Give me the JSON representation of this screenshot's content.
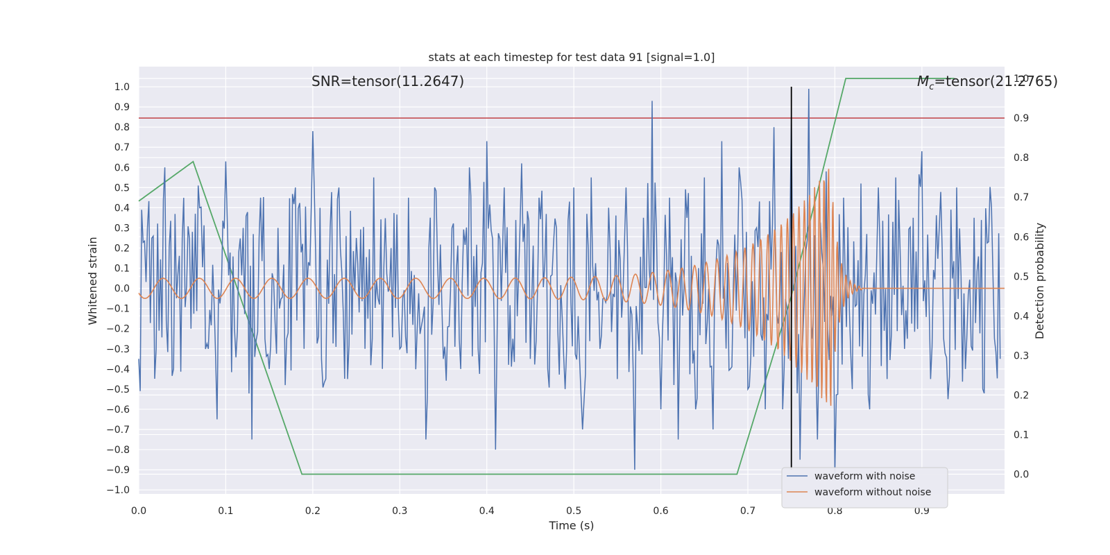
{
  "chart_data": {
    "type": "line",
    "title": "stats at each timestep for test data 91 [signal=1.0]",
    "xlabel": "Time (s)",
    "ylabel": "Whitened strain",
    "y2label": "Detection probability",
    "xlim": [
      0.0,
      0.995
    ],
    "ylim": [
      -1.02,
      1.1
    ],
    "y2lim": [
      -0.05,
      1.03
    ],
    "x_ticks": [
      "0.0",
      "0.1",
      "0.2",
      "0.3",
      "0.4",
      "0.5",
      "0.6",
      "0.7",
      "0.8",
      "0.9"
    ],
    "y_ticks": [
      "1.0",
      "0.9",
      "0.8",
      "0.7",
      "0.6",
      "0.5",
      "0.4",
      "0.3",
      "0.2",
      "0.1",
      "0.0",
      "−0.1",
      "−0.2",
      "−0.3",
      "−0.4",
      "−0.5",
      "−0.6",
      "−0.7",
      "−0.8",
      "−0.9",
      "−1.0"
    ],
    "y2_ticks": [
      "1.0",
      "0.9",
      "0.8",
      "0.7",
      "0.6",
      "0.5",
      "0.4",
      "0.3",
      "0.2",
      "0.1",
      "0.0"
    ],
    "grid": true,
    "legend_position": "lower-right",
    "annotations": {
      "snr": "SNR=tensor(11.2647)",
      "mc_symbol": "M",
      "mc_sub": "c",
      "mc_value": "=tensor(21.2765)"
    },
    "colors": {
      "noise": "#4c72b0",
      "clean": "#dd8452",
      "prob": "#55a868",
      "threshold": "#c44e52",
      "marker": "#000000",
      "plot_bg": "#eaeaf2",
      "grid": "#ffffff"
    },
    "threshold_probability": 0.9,
    "event_time": 0.75,
    "series": [
      {
        "name": "waveform with noise",
        "x": [
          0.0,
          0.01,
          0.02,
          0.03,
          0.04,
          0.05,
          0.06,
          0.07,
          0.08,
          0.09,
          0.1,
          0.11,
          0.12,
          0.13,
          0.14,
          0.15,
          0.16,
          0.17,
          0.18,
          0.19,
          0.2,
          0.21,
          0.22,
          0.23,
          0.24,
          0.25,
          0.26,
          0.27,
          0.28,
          0.29,
          0.3,
          0.31,
          0.32,
          0.33,
          0.34,
          0.35,
          0.36,
          0.37,
          0.38,
          0.39,
          0.4,
          0.41,
          0.42,
          0.43,
          0.44,
          0.45,
          0.46,
          0.47,
          0.48,
          0.49,
          0.5,
          0.51,
          0.52,
          0.53,
          0.54,
          0.55,
          0.56,
          0.57,
          0.58,
          0.59,
          0.6,
          0.61,
          0.62,
          0.63,
          0.64,
          0.65,
          0.66,
          0.67,
          0.68,
          0.69,
          0.7,
          0.71,
          0.72,
          0.73,
          0.74,
          0.75,
          0.76,
          0.77,
          0.78,
          0.79,
          0.8,
          0.81,
          0.82,
          0.83,
          0.84,
          0.85,
          0.86,
          0.87,
          0.88,
          0.89,
          0.9,
          0.91,
          0.92,
          0.93,
          0.94,
          0.95,
          0.96,
          0.97,
          0.98,
          0.99
        ],
        "values": [
          -0.35,
          0.3,
          -0.3,
          0.6,
          -0.4,
          0.25,
          -0.2,
          0.4,
          -0.3,
          -0.65,
          0.63,
          -0.2,
          0.3,
          -0.75,
          0.45,
          -0.4,
          0.3,
          -0.25,
          0.5,
          -0.3,
          0.78,
          -0.35,
          0.3,
          0.5,
          -0.45,
          0.25,
          -0.3,
          0.55,
          -0.4,
          0.2,
          -0.3,
          0.45,
          -0.2,
          -0.75,
          0.5,
          -0.35,
          0.3,
          -0.4,
          0.6,
          -0.3,
          0.73,
          -0.8,
          0.5,
          -0.25,
          0.62,
          -0.35,
          0.45,
          -0.4,
          0.3,
          -0.5,
          0.5,
          -0.7,
          0.55,
          -0.3,
          0.4,
          -0.45,
          0.5,
          -0.9,
          0.35,
          0.93,
          -0.6,
          0.45,
          -0.75,
          0.35,
          -0.6,
          0.55,
          -0.7,
          0.73,
          -0.4,
          0.6,
          -0.5,
          0.3,
          -0.6,
          0.8,
          -0.6,
          0.85,
          -0.85,
          0.99,
          -0.75,
          0.58,
          -0.92,
          0.45,
          -0.5,
          0.52,
          -0.6,
          0.5,
          -0.45,
          0.55,
          -0.3,
          0.35,
          0.68,
          -0.45,
          0.3,
          -0.55,
          0.5,
          -0.4,
          0.35,
          -0.5,
          0.4,
          -0.35
        ]
      },
      {
        "name": "waveform without noise",
        "chirp": {
          "t0": 0.0,
          "t_merge": 0.795,
          "t_end": 0.995,
          "f_start": 24,
          "f_end": 200,
          "amp_start": 0.05,
          "amp_peak": 0.62
        }
      },
      {
        "name": "detection probability",
        "axis": "right",
        "x": [
          0.0,
          0.0625,
          0.1875,
          0.25,
          0.6875,
          0.75,
          0.8125,
          0.9375
        ],
        "values": [
          0.69,
          0.79,
          0.0,
          0.0,
          0.0,
          0.45,
          1.0,
          1.0
        ]
      }
    ]
  }
}
